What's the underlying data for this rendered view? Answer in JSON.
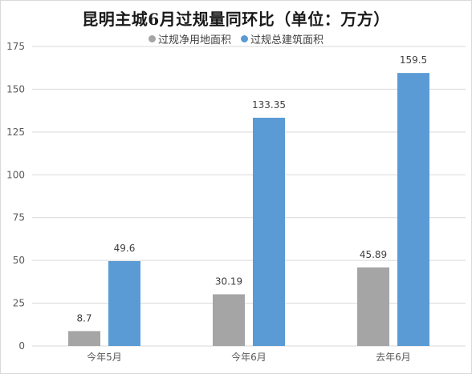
{
  "chart_data": {
    "type": "bar",
    "title": "昆明主城6月过规量同环比（单位：万方）",
    "categories": [
      "今年5月",
      "今年6月",
      "去年6月"
    ],
    "series": [
      {
        "name": "过规净用地面积",
        "values": [
          8.7,
          30.19,
          45.89
        ],
        "labels": [
          "8.7",
          "30.19",
          "45.89"
        ],
        "color": "#a5a5a5"
      },
      {
        "name": "过规总建筑面积",
        "values": [
          49.6,
          133.35,
          159.5
        ],
        "labels": [
          "49.6",
          "133.35",
          "159.5"
        ],
        "color": "#5b9bd5"
      }
    ],
    "ylim": [
      0,
      175
    ],
    "yticks": [
      0,
      25,
      50,
      75,
      100,
      125,
      150,
      175
    ],
    "grid": true,
    "legend_position": "top",
    "xlabel": "",
    "ylabel": ""
  }
}
